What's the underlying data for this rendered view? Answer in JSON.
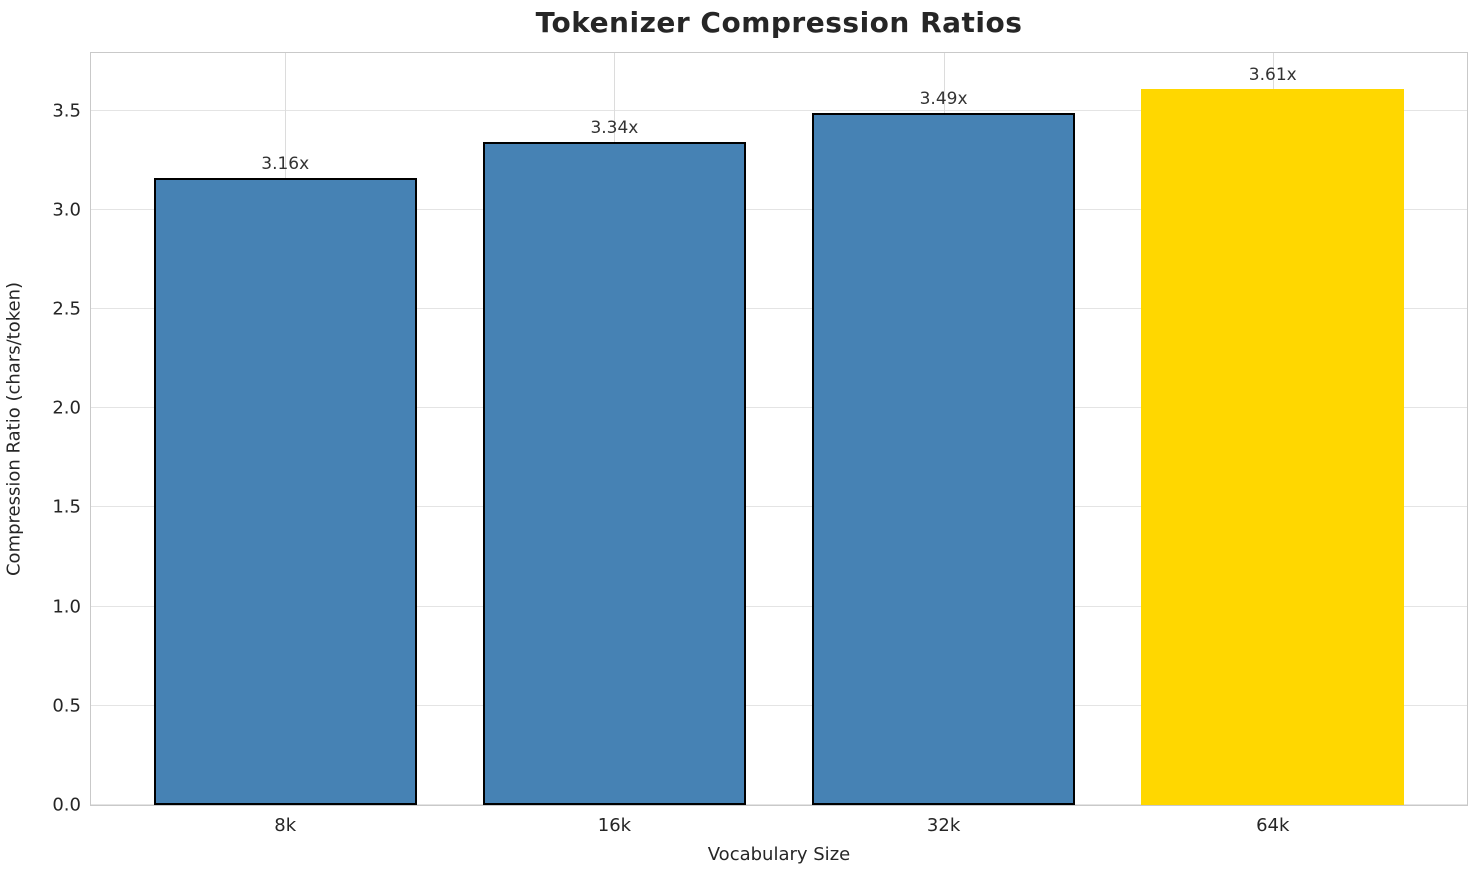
{
  "chart_data": {
    "type": "bar",
    "title": "Tokenizer Compression Ratios",
    "xlabel": "Vocabulary Size",
    "ylabel": "Compression Ratio (chars/token)",
    "categories": [
      "8k",
      "16k",
      "32k",
      "64k"
    ],
    "values": [
      3.16,
      3.34,
      3.49,
      3.61
    ],
    "bar_labels": [
      "3.16x",
      "3.34x",
      "3.49x",
      "3.61x"
    ],
    "yticks": [
      0.0,
      0.5,
      1.0,
      1.5,
      2.0,
      2.5,
      3.0,
      3.5
    ],
    "ytick_labels": [
      "0.0",
      "0.5",
      "1.0",
      "1.5",
      "2.0",
      "2.5",
      "3.0",
      "3.5"
    ],
    "ylim": [
      0,
      3.79
    ],
    "grid": true,
    "legend": false,
    "bar_colors": [
      "#4682B4",
      "#4682B4",
      "#4682B4",
      "#FFD700"
    ],
    "bar_edge_colors": [
      "#000000",
      "#000000",
      "#000000",
      "none"
    ],
    "highlight_color": "#FFD700",
    "base_color": "#4682B4"
  }
}
